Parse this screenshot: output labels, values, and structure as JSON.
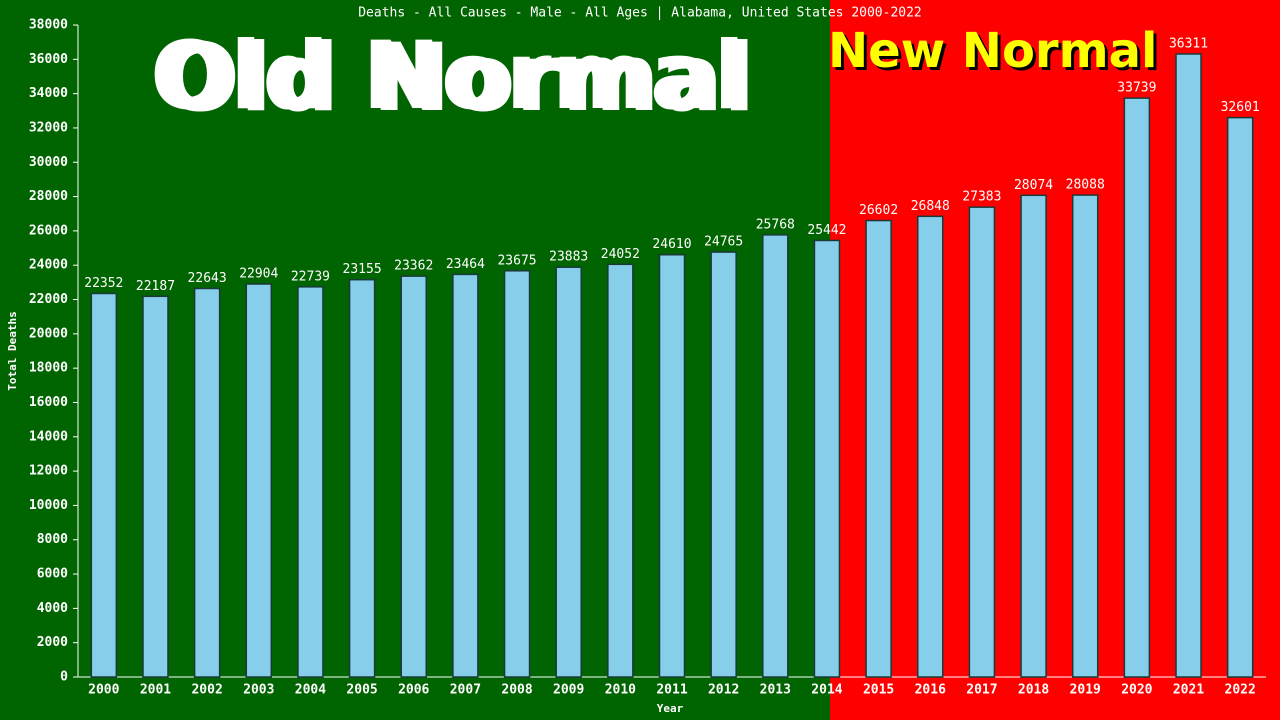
{
  "chart_data": {
    "type": "bar",
    "title": "Deaths - All Causes - Male - All Ages | Alabama, United States 2000-2022",
    "annotations": [
      "Old Normal",
      "New Normal"
    ],
    "x_label": "Year",
    "y_label": "Total Deaths",
    "categories": [
      "2000",
      "2001",
      "2002",
      "2003",
      "2004",
      "2005",
      "2006",
      "2007",
      "2008",
      "2009",
      "2010",
      "2011",
      "2012",
      "2013",
      "2014",
      "2015",
      "2016",
      "2017",
      "2018",
      "2019",
      "2020",
      "2021",
      "2022"
    ],
    "values": [
      22352,
      22187,
      22643,
      22904,
      22739,
      23155,
      23362,
      23464,
      23675,
      23883,
      24052,
      24610,
      24765,
      25768,
      25442,
      26602,
      26848,
      27383,
      28074,
      28088,
      33739,
      36311,
      32601
    ],
    "color": "#87ceeb",
    "ylim": [
      0,
      38000
    ],
    "yticks": [
      0,
      2000,
      4000,
      6000,
      8000,
      10000,
      12000,
      14000,
      16000,
      18000,
      20000,
      22000,
      24000,
      26000,
      28000,
      30000,
      32000,
      34000,
      36000,
      38000
    ],
    "grid": false
  }
}
